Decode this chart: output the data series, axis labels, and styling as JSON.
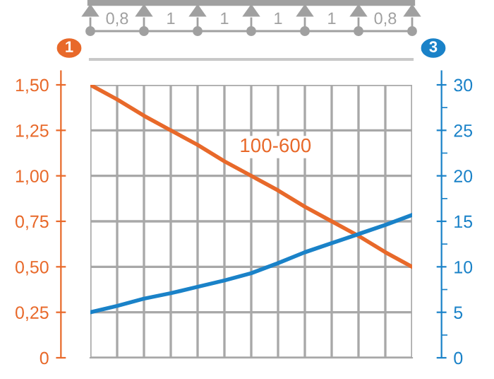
{
  "chart_data": {
    "type": "line",
    "ylabel": "1",
    "y2label": "3",
    "annotations": [
      "0,8",
      "1",
      "1",
      "1",
      "1",
      "0,8"
    ],
    "categories": [
      null,
      null,
      null,
      null,
      null,
      null,
      null,
      null,
      null,
      null,
      null,
      null,
      null
    ],
    "series": [
      {
        "name": "100-600",
        "color": "#e8692a",
        "values": [
          1.5,
          1.42,
          1.33,
          1.25,
          1.17,
          1.08,
          1.0,
          0.92,
          0.83,
          0.75,
          0.67,
          0.58,
          0.5
        ]
      },
      {
        "color": "#1a82c8",
        "axis": "y2",
        "values": [
          5,
          5.7,
          6.5,
          7.1,
          7.8,
          8.5,
          9.3,
          10.4,
          11.6,
          12.6,
          13.6,
          14.6,
          15.7
        ]
      }
    ],
    "ylim": [
      0,
      1.5
    ],
    "yticks": [
      0,
      {
        "value": 0.25,
        "label": "0,25"
      },
      {
        "value": 0.5,
        "label": "0,50"
      },
      {
        "value": 0.75,
        "label": "0,75"
      },
      {
        "value": 1.0,
        "label": "1,00"
      },
      {
        "value": 1.25,
        "label": "1,25"
      },
      {
        "value": 1.5,
        "label": "1,50"
      }
    ],
    "y2lim": [
      0,
      30
    ],
    "y2ticks": [
      0,
      5,
      10,
      15,
      20,
      25,
      30
    ],
    "grid": true,
    "legend": false,
    "marker": "none",
    "line_style": "solid"
  }
}
